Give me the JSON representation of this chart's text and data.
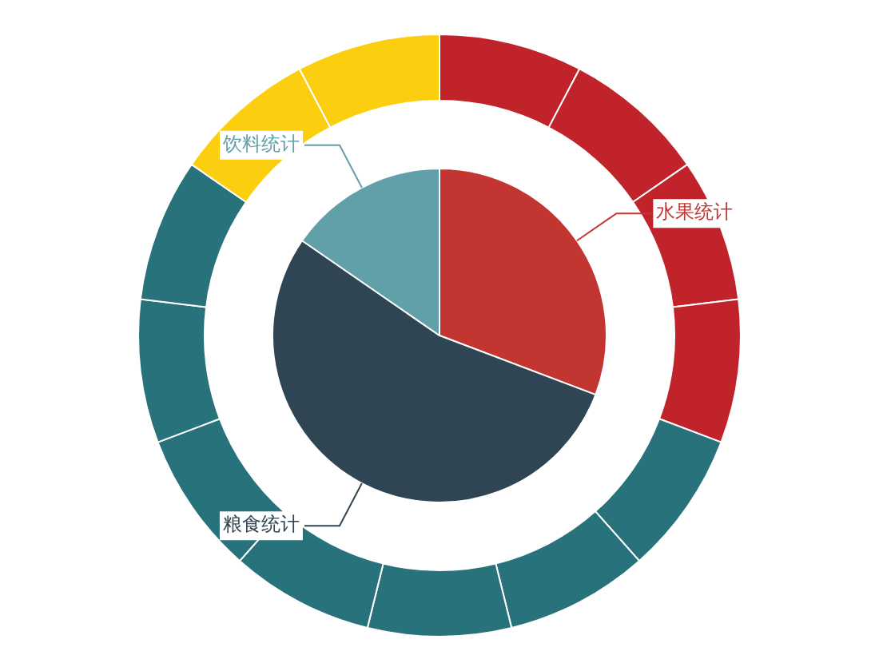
{
  "chart_data": [
    {
      "type": "pie",
      "categories": [
        "水果统计",
        "粮食统计",
        "饮料统计"
      ],
      "values": [
        30.77,
        53.85,
        15.38
      ],
      "colors": [
        "#c23531",
        "#2f4554",
        "#61a0a8"
      ],
      "data_labels": false,
      "legend": false
    },
    {
      "type": "donut",
      "categories": [
        null,
        null,
        null,
        null,
        null,
        null,
        null,
        null,
        null,
        null,
        null,
        null,
        null
      ],
      "values": [
        7.69,
        7.69,
        7.69,
        7.69,
        7.69,
        7.69,
        7.69,
        7.69,
        7.69,
        7.69,
        7.69,
        7.69,
        7.69
      ],
      "colors": [
        "#c1232b",
        "#c1232b",
        "#c1232b",
        "#c1232b",
        "#27727b",
        "#27727b",
        "#27727b",
        "#27727b",
        "#27727b",
        "#27727b",
        "#27727b",
        "#fcce10",
        "#fcce10"
      ],
      "legend": false
    }
  ]
}
